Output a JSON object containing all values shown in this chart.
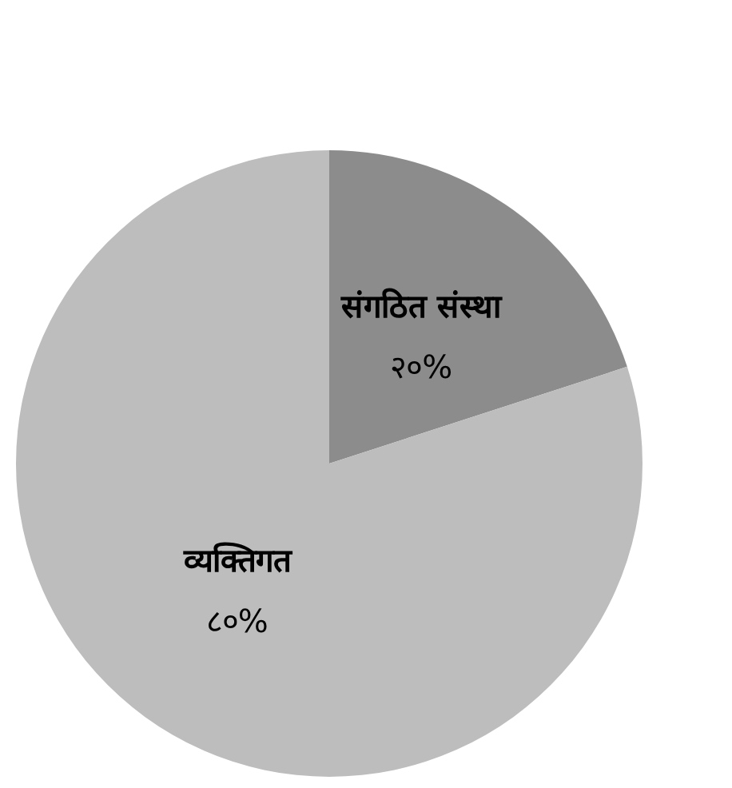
{
  "chart_data": {
    "type": "pie",
    "categories": [
      "संगठित संस्था",
      "व्यक्तिगत"
    ],
    "values": [
      20,
      80
    ],
    "colors": [
      "#8c8c8c",
      "#bdbdbd"
    ],
    "value_labels": [
      "२०%",
      "८०%"
    ]
  }
}
